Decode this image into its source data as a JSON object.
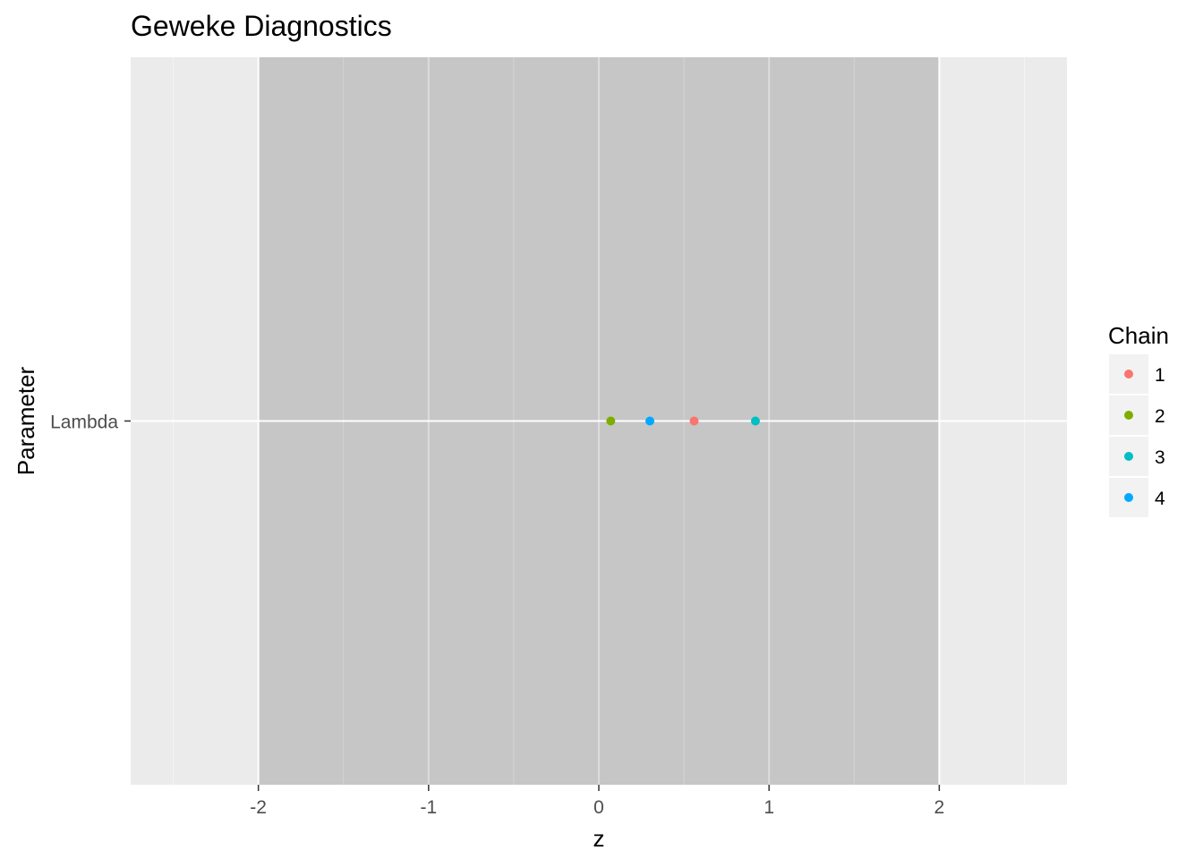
{
  "chart_data": {
    "type": "scatter",
    "title": "Geweke Diagnostics",
    "xlabel": "z",
    "ylabel": "Parameter",
    "xlim": [
      -2.75,
      2.75
    ],
    "x_ticks": [
      -2,
      -1,
      0,
      1,
      2
    ],
    "x_tick_labels": [
      "-2",
      "-1",
      "0",
      "1",
      "2"
    ],
    "x_minor_ticks": [
      -2.5,
      -1.5,
      -0.5,
      0.5,
      1.5,
      2.5
    ],
    "categories": [
      "Lambda"
    ],
    "shaded_band": [
      -2,
      2
    ],
    "grid": true,
    "legend": {
      "title": "Chain",
      "position": "right"
    },
    "series": [
      {
        "name": "1",
        "color": "#F8766D",
        "points": [
          {
            "x": 0.56,
            "y": "Lambda"
          }
        ]
      },
      {
        "name": "2",
        "color": "#7CAE00",
        "points": [
          {
            "x": 0.07,
            "y": "Lambda"
          }
        ]
      },
      {
        "name": "3",
        "color": "#00BFC4",
        "points": [
          {
            "x": 0.92,
            "y": "Lambda"
          }
        ]
      },
      {
        "name": "4",
        "color": "#00A9FF",
        "points": [
          {
            "x": 0.3,
            "y": "Lambda"
          }
        ]
      }
    ],
    "colors": {
      "panel_background": "#EBEBEB",
      "band_fill": "#C6C6C6",
      "grid_major": "#FFFFFF",
      "grid_minor": "#F5F5F5"
    }
  }
}
